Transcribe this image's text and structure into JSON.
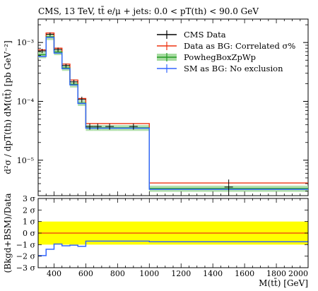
{
  "chart_data": {
    "type": "line",
    "title": "CMS, 13 TeV, tt̄ e/μ + jets: 0.0 < pT(th) < 90.0 GeV",
    "xlabel": "M(tt̄) [GeV]",
    "ylabel_main": "d²σ / dpT(th) dM(tt̄) [pb GeV⁻²]",
    "ylabel_ratio": "(Bkgd+BSM)/Data",
    "xlim": [
      300,
      2000
    ],
    "ylim_main": [
      2.5e-06,
      0.0025
    ],
    "yscale_main": "log",
    "ylim_ratio": [
      -3,
      3
    ],
    "legend_position": "top-right",
    "x_ticks": [
      "400",
      "600",
      "800",
      "1000",
      "1200",
      "1400",
      "1600",
      "1800",
      "2000"
    ],
    "y_ticks_main": [
      "10⁻⁵",
      "10⁻⁴",
      "10⁻³"
    ],
    "y_ticks_ratio": [
      "3 σ",
      "2 σ",
      "1 σ",
      "0 σ",
      "−1 σ",
      "−2 σ",
      "−3 σ"
    ],
    "bin_edges": [
      300,
      350,
      400,
      450,
      500,
      550,
      600,
      650,
      700,
      800,
      1000,
      2000
    ],
    "series": [
      {
        "name": "CMS Data",
        "color": "#000000",
        "values": [
          0.00072,
          0.00138,
          0.00076,
          0.000405,
          0.000215,
          0.000108,
          3.75e-05,
          3.75e-05,
          3.75e-05,
          3.75e-05,
          3.5e-06
        ],
        "errors": [
          6e-05,
          0.0001,
          6e-05,
          3e-05,
          1.8e-05,
          1.2e-05,
          4.5e-06,
          4.5e-06,
          4.5e-06,
          4.5e-06,
          1.2e-06
        ]
      },
      {
        "name": "Data as BG: Correlated σ%",
        "color": "#ee3311",
        "values": [
          0.00075,
          0.00145,
          0.0008,
          0.00043,
          0.00023,
          0.000112,
          4.2e-05,
          4.2e-05,
          4.2e-05,
          4.2e-05,
          4.1e-06
        ]
      },
      {
        "name": "PowhegBoxZpWp",
        "color": "#229922",
        "band_color": "#a6dba0",
        "values": [
          0.00062,
          0.00125,
          0.00069,
          0.00037,
          0.000195,
          9.35e-05,
          3.55e-05,
          3.55e-05,
          3.55e-05,
          3.55e-05,
          3.3e-06
        ],
        "band_low": [
          0.00054,
          0.0011,
          0.00061,
          0.00033,
          0.000172,
          8.35e-05,
          3.15e-05,
          3.15e-05,
          3.15e-05,
          3.15e-05,
          2.9e-06
        ],
        "band_high": [
          0.0007,
          0.0014,
          0.00077,
          0.000415,
          0.000218,
          0.000104,
          3.95e-05,
          3.95e-05,
          3.95e-05,
          3.95e-05,
          3.7e-06
        ]
      },
      {
        "name": "SM as BG: No exclusion",
        "color": "#3366ff",
        "values": [
          0.00058,
          0.00122,
          0.00066,
          0.00036,
          0.00019,
          9.2e-05,
          3.5e-05,
          3.5e-05,
          3.5e-05,
          3.5e-05,
          3.2e-06
        ]
      }
    ],
    "ratio_band": {
      "low": -1,
      "high": 1,
      "color": "#ffff00",
      "line_color": "#ee3311"
    },
    "ratio_series": {
      "color": "#3366ff",
      "values": [
        -1.95,
        -1.4,
        -0.95,
        -1.1,
        -1.05,
        -1.15,
        -0.7,
        -0.7,
        -0.7,
        -0.7,
        -0.75
      ]
    }
  }
}
